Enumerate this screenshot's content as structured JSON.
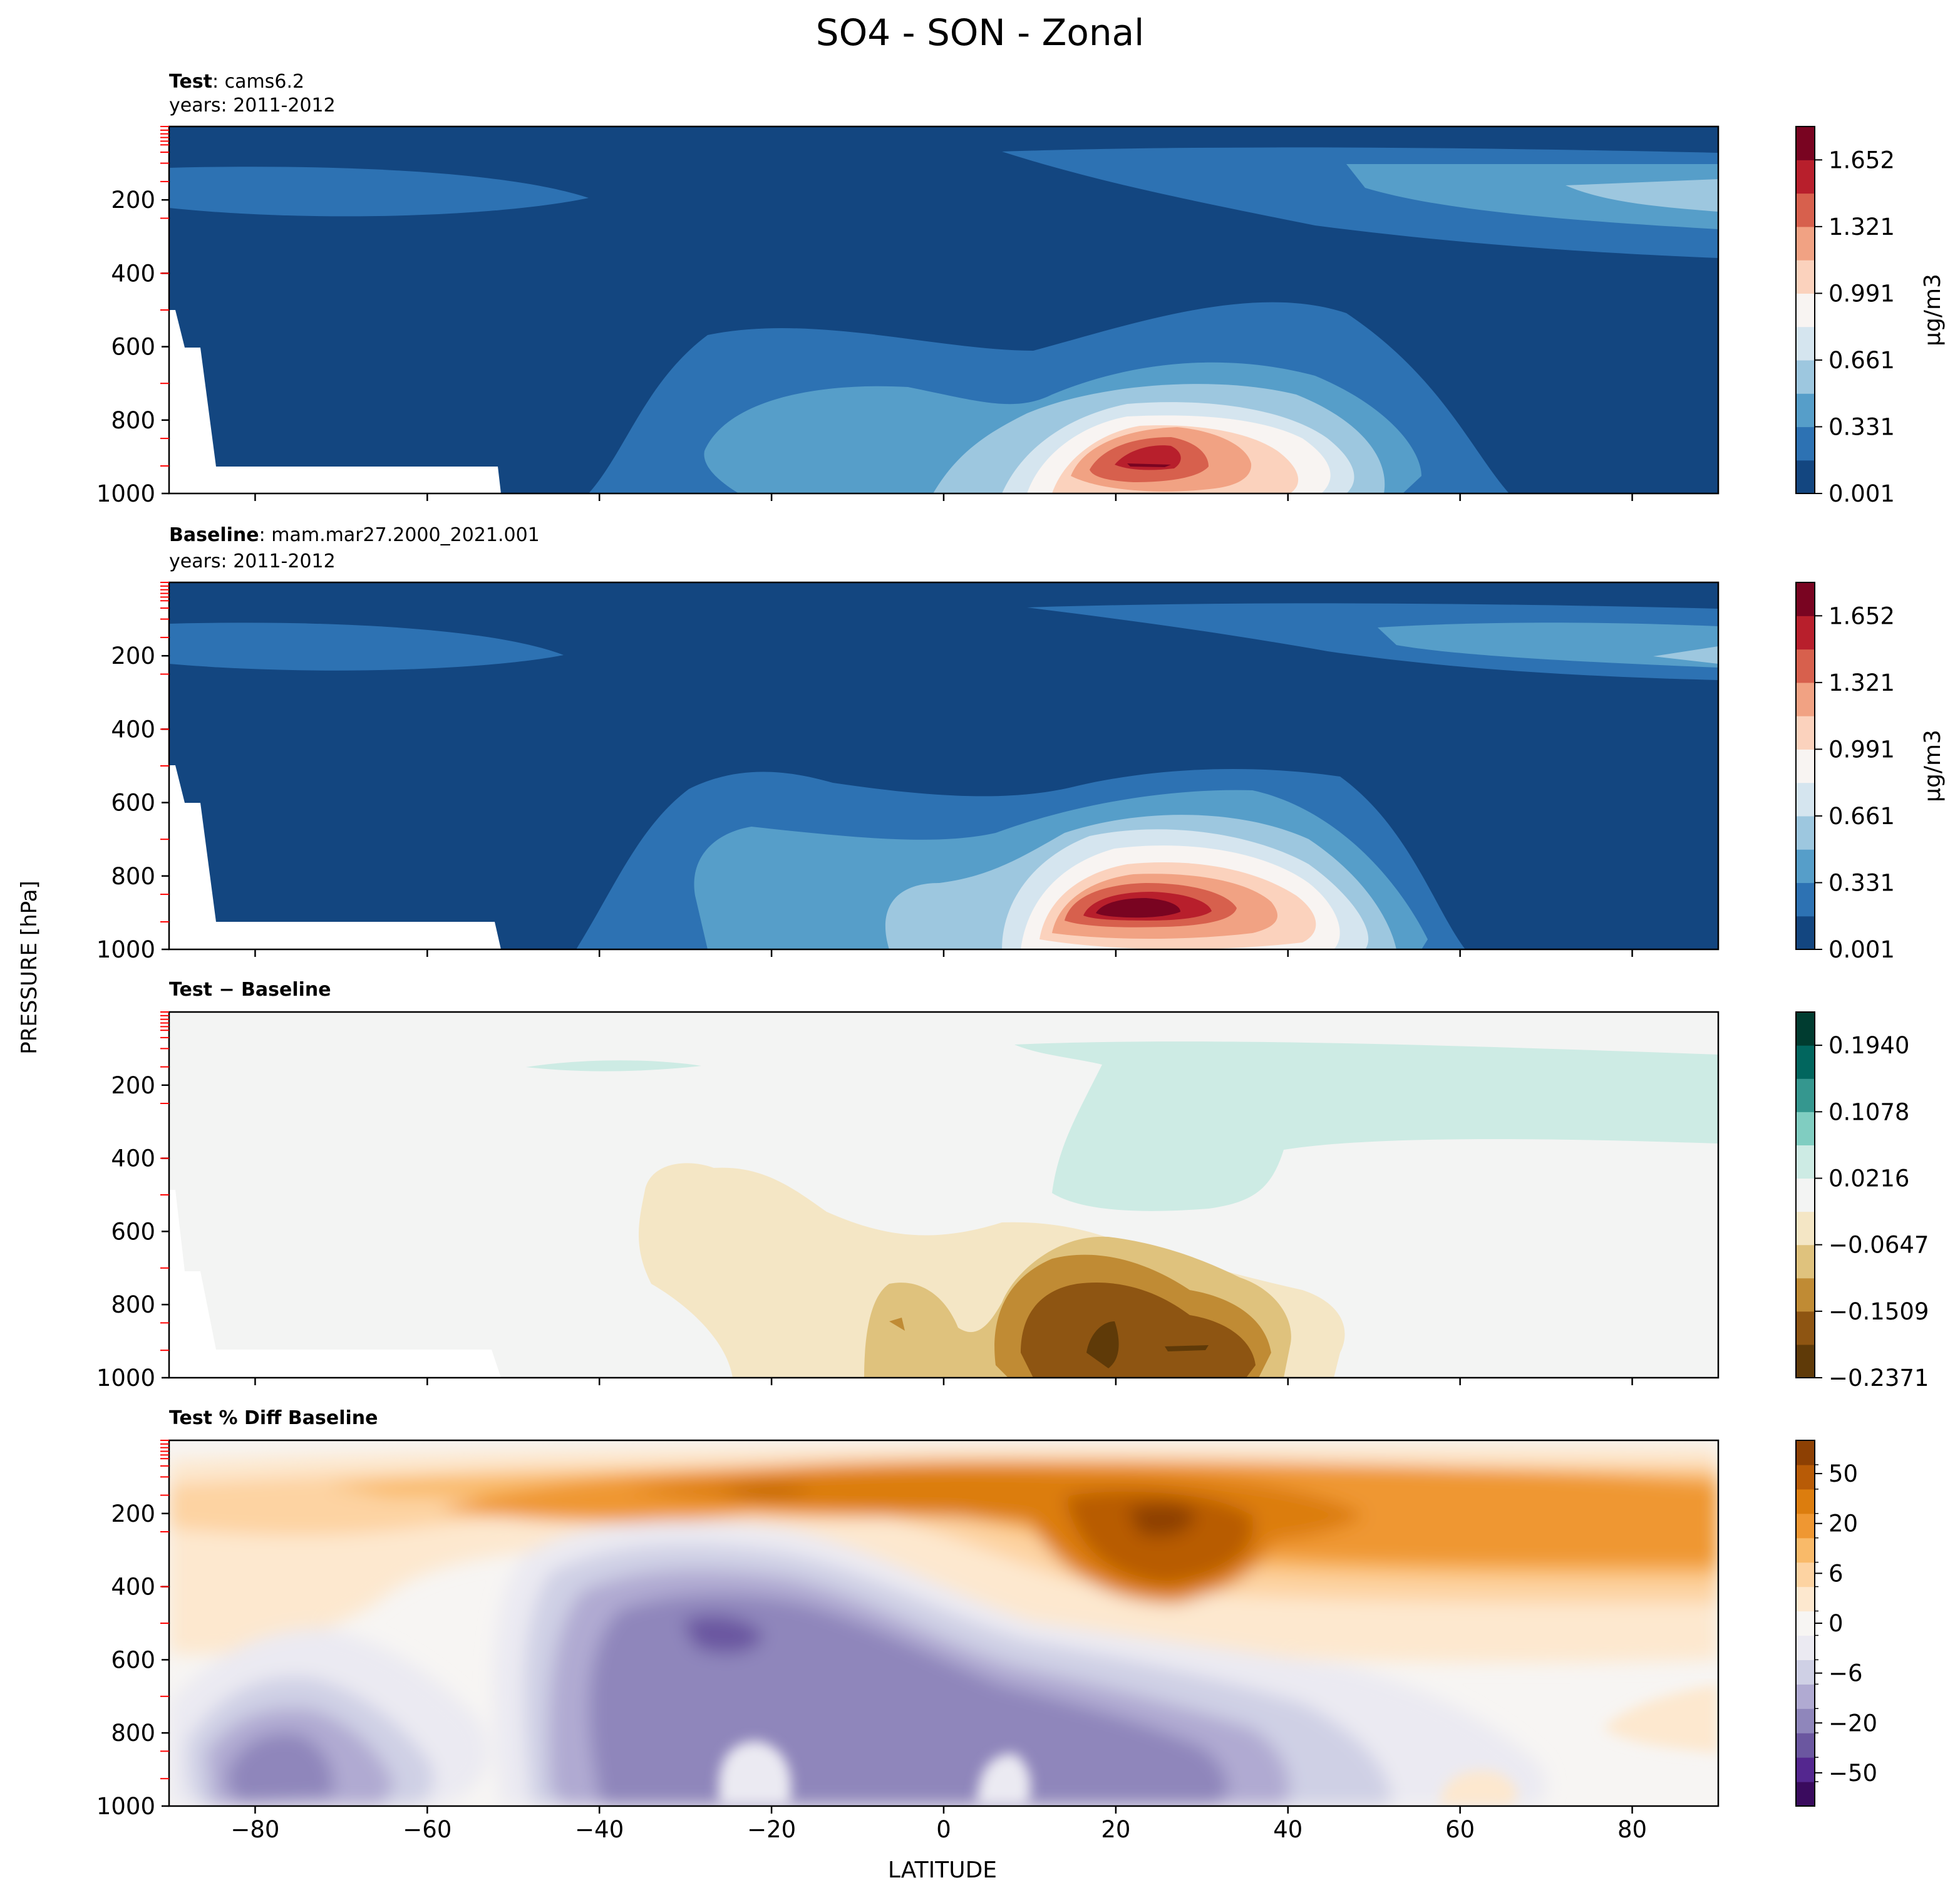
{
  "figure": {
    "title": "SO4 - SON - Zonal",
    "ylabel": "PRESSURE [hPa]",
    "xlabel": "LATITUDE"
  },
  "colors": {
    "test_baseline_levels": [
      "#134680",
      "#2d72b3",
      "#569ec9",
      "#9dc7df",
      "#d5e5ef",
      "#f8f4f2",
      "#fbd2bd",
      "#f1a283",
      "#d7604d",
      "#b81f2c",
      "#790421"
    ],
    "diff_levels": [
      "#5f3a08",
      "#8e5512",
      "#c08b34",
      "#dfc27d",
      "#f4e6c5",
      "#f3f4f3",
      "#cdebe4",
      "#80cdc1",
      "#35978f",
      "#01665e",
      "#003c30"
    ],
    "pctdiff_levels": [
      "#3a0b5e",
      "#54278f",
      "#6b57a0",
      "#8f86bb",
      "#b0aad2",
      "#cfd0e5",
      "#ebeaf2",
      "#f7f5f3",
      "#fde8cf",
      "#fdd3a2",
      "#f9ba69",
      "#ef9732",
      "#dc7d0e",
      "#b85b06",
      "#8d4003"
    ],
    "missing": "#ffffff",
    "pressure_tick_marks": "#ff0000"
  },
  "chart_data": [
    {
      "type": "heatmap",
      "panel": "test",
      "title_bold": "Test",
      "title_rest": ": cams6.2",
      "subtitle": "years: 2011-2012",
      "x": [
        -90,
        90
      ],
      "y": [
        1000,
        0
      ],
      "xticks": [
        -80,
        -60,
        -40,
        -20,
        0,
        20,
        40,
        60,
        80
      ],
      "yticks": [
        200,
        400,
        600,
        800,
        1000
      ],
      "colorbar": {
        "label": "μg/m3",
        "ticks": [
          "0.001",
          "0.331",
          "0.661",
          "0.991",
          "1.321",
          "1.652"
        ],
        "range": [
          0.001,
          1.817
        ]
      }
    },
    {
      "type": "heatmap",
      "panel": "baseline",
      "title_bold": "Baseline",
      "title_rest": ": mam.mar27.2000_2021.001",
      "subtitle": "years: 2011-2012",
      "x": [
        -90,
        90
      ],
      "y": [
        1000,
        0
      ],
      "xticks": [
        -80,
        -60,
        -40,
        -20,
        0,
        20,
        40,
        60,
        80
      ],
      "yticks": [
        200,
        400,
        600,
        800,
        1000
      ],
      "colorbar": {
        "label": "μg/m3",
        "ticks": [
          "0.001",
          "0.331",
          "0.661",
          "0.991",
          "1.321",
          "1.652"
        ],
        "range": [
          0.001,
          1.817
        ]
      }
    },
    {
      "type": "heatmap",
      "panel": "diff",
      "title_bold": "Test − Baseline",
      "title_rest": "",
      "subtitle": "",
      "x": [
        -90,
        90
      ],
      "y": [
        1000,
        0
      ],
      "xticks": [
        -80,
        -60,
        -40,
        -20,
        0,
        20,
        40,
        60,
        80
      ],
      "yticks": [
        200,
        400,
        600,
        800,
        1000
      ],
      "colorbar": {
        "label": "",
        "ticks": [
          "−0.2371",
          "−0.1509",
          "−0.0647",
          "0.0216",
          "0.1078",
          "0.1940"
        ],
        "range": [
          -0.2371,
          0.237
        ]
      }
    },
    {
      "type": "heatmap",
      "panel": "pctdiff",
      "title_bold": "Test % Diff Baseline",
      "title_rest": "",
      "subtitle": "",
      "x": [
        -90,
        90
      ],
      "y": [
        1000,
        0
      ],
      "xticks": [
        -80,
        -60,
        -40,
        -20,
        0,
        20,
        40,
        60,
        80
      ],
      "yticks": [
        200,
        400,
        600,
        800,
        1000
      ],
      "colorbar": {
        "label": "",
        "ticks": [
          "−50",
          "−20",
          "−6",
          "0",
          "6",
          "20",
          "50"
        ]
      }
    }
  ]
}
